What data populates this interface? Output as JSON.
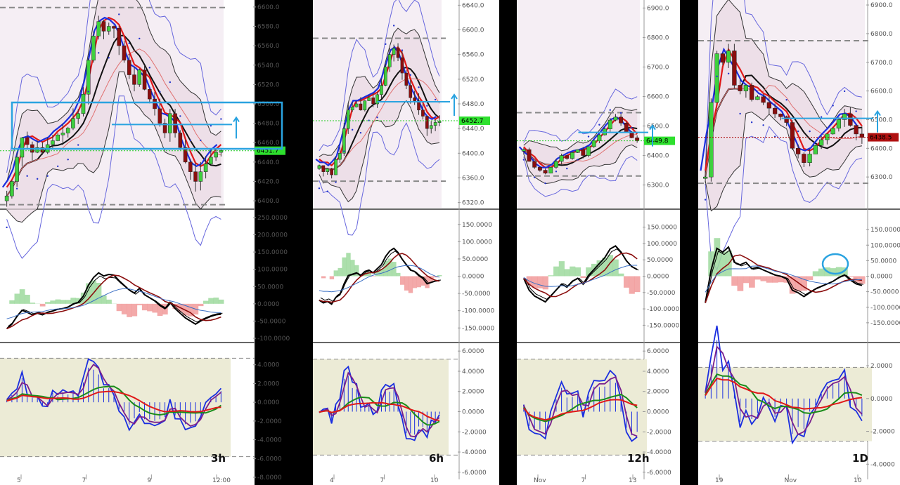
{
  "chart_data": [
    {
      "type": "candlestick",
      "timeframe": "3h",
      "x_ticks": [
        "5",
        "7",
        "9",
        "12:00"
      ],
      "price": {
        "ylim": [
          6395,
          6605
        ],
        "ticks": [
          "6400.0",
          "6420.0",
          "6440.0",
          "6460.0",
          "6480.0",
          "6500.0",
          "6520.0",
          "6540.0",
          "6560.0",
          "6580.0",
          "6600.0"
        ],
        "last_price": "6451.7",
        "last_value": 6451.7,
        "close": [
          6405,
          6420,
          6445,
          6465,
          6458,
          6450,
          6455,
          6450,
          6458,
          6462,
          6468,
          6470,
          6475,
          6485,
          6490,
          6510,
          6545,
          6570,
          6585,
          6575,
          6580,
          6578,
          6560,
          6545,
          6530,
          6520,
          6535,
          6515,
          6505,
          6495,
          6480,
          6470,
          6490,
          6470,
          6455,
          6440,
          6430,
          6420,
          6430,
          6438,
          6445,
          6450,
          6452
        ]
      },
      "macd": {
        "ylim": [
          -100,
          260
        ],
        "ticks": [
          "250.0000",
          "200.0000",
          "150.0000",
          "100.0000",
          "50.0000",
          "0.0000",
          "-50.0000",
          "-100.0000"
        ]
      },
      "osc": {
        "ylim": [
          -8,
          6
        ],
        "ticks": [
          "4.0000",
          "2.0000",
          "0.0000",
          "-2.0000",
          "-4.0000",
          "-6.0000",
          "-8.0000"
        ]
      }
    },
    {
      "type": "candlestick",
      "timeframe": "6h",
      "x_ticks": [
        "4",
        "7",
        "10"
      ],
      "price": {
        "ylim": [
          6315,
          6645
        ],
        "ticks": [
          "6320.0",
          "6360.0",
          "6400.0",
          "6440.0",
          "6480.0",
          "6520.0",
          "6560.0",
          "6600.0",
          "6640.0"
        ],
        "last_price": "6452.7",
        "last_value": 6452.7,
        "close": [
          6380,
          6370,
          6375,
          6365,
          6390,
          6400,
          6440,
          6470,
          6475,
          6480,
          6470,
          6485,
          6490,
          6480,
          6495,
          6510,
          6540,
          6560,
          6570,
          6555,
          6530,
          6510,
          6490,
          6485,
          6470,
          6460,
          6440,
          6445,
          6450,
          6452
        ]
      },
      "macd": {
        "ylim": [
          -180,
          180
        ],
        "ticks": [
          "150.0000",
          "100.0000",
          "50.0000",
          "0.0000",
          "-50.0000",
          "-100.0000",
          "-150.0000"
        ]
      },
      "osc": {
        "ylim": [
          -6.5,
          6.5
        ],
        "ticks": [
          "6.0000",
          "4.0000",
          "2.0000",
          "0.0000",
          "-2.0000",
          "-4.0000",
          "-6.0000"
        ]
      }
    },
    {
      "type": "candlestick",
      "timeframe": "12h",
      "x_ticks": [
        "Nov",
        "7",
        "13"
      ],
      "price": {
        "ylim": [
          6230,
          6920
        ],
        "ticks": [
          "6300.0",
          "6400.0",
          "6500.0",
          "6600.0",
          "6700.0",
          "6800.0",
          "6900.0"
        ],
        "last_price": "6449.8",
        "last_value": 6449.8,
        "close": [
          6420,
          6380,
          6360,
          6350,
          6340,
          6360,
          6380,
          6400,
          6390,
          6410,
          6420,
          6400,
          6430,
          6450,
          6470,
          6490,
          6520,
          6530,
          6510,
          6480,
          6460,
          6450
        ]
      },
      "macd": {
        "ylim": [
          -190,
          190
        ],
        "ticks": [
          "150.0000",
          "100.0000",
          "50.0000",
          "0.0000",
          "-50.0000",
          "-100.0000",
          "-150.0000"
        ]
      },
      "osc": {
        "ylim": [
          -6.5,
          6.5
        ],
        "ticks": [
          "6.0000",
          "4.0000",
          "2.0000",
          "0.0000",
          "-2.0000",
          "-4.0000",
          "-6.0000"
        ]
      }
    },
    {
      "type": "candlestick",
      "timeframe": "1D",
      "x_ticks": [
        "19",
        "Nov",
        "10"
      ],
      "price": {
        "ylim": [
          6200,
          6910
        ],
        "ticks": [
          "6300.0",
          "6400.0",
          "6500.0",
          "6600.0",
          "6700.0",
          "6800.0",
          "6900.0"
        ],
        "last_price": "6438.5",
        "last_value": 6438.5,
        "close": [
          6300,
          6560,
          6730,
          6700,
          6740,
          6620,
          6600,
          6620,
          6570,
          6580,
          6560,
          6540,
          6520,
          6510,
          6490,
          6400,
          6380,
          6350,
          6380,
          6410,
          6430,
          6450,
          6470,
          6500,
          6520,
          6480,
          6450,
          6438
        ]
      },
      "macd": {
        "ylim": [
          -200,
          200
        ],
        "ticks": [
          "150.0000",
          "100.0000",
          "50.0000",
          "0.0000",
          "-50.0000",
          "-100.0000",
          "-150.0000"
        ]
      },
      "osc": {
        "ylim": [
          -4.8,
          3.2
        ],
        "ticks": [
          "2.0000",
          "0.0000",
          "-2.0000",
          "-4.0000"
        ]
      }
    }
  ]
}
